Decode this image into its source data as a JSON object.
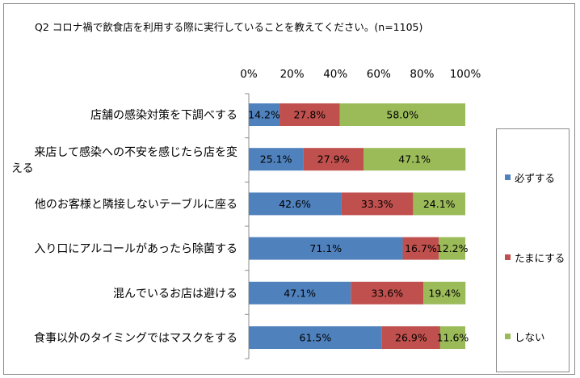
{
  "title": "Q2 コロナ禍で飲食店を利用する際に実行していることを教えてください。(n=1105)",
  "chart_data": {
    "type": "bar",
    "orientation": "horizontal",
    "stacked": "percent",
    "xlim": [
      0,
      100
    ],
    "ticks": [
      "0%",
      "20%",
      "40%",
      "60%",
      "80%",
      "100%"
    ],
    "tick_position": "top",
    "grid": false,
    "legend_position": "right",
    "categories": [
      [
        "店舗の感染対策を下調べする"
      ],
      [
        "来店して感染への不安を感じたら店を変",
        "える"
      ],
      [
        "他のお客様と隣接しないテーブルに座る"
      ],
      [
        "入り口にアルコールがあったら除菌する"
      ],
      [
        "混んでいるお店は避ける"
      ],
      [
        "食事以外のタイミングではマスクをする"
      ]
    ],
    "series": [
      {
        "name": "必ずする",
        "color": "#4f81bd",
        "values": [
          14.2,
          25.1,
          42.6,
          71.1,
          47.1,
          61.5
        ]
      },
      {
        "name": "たまにする",
        "color": "#c0504d",
        "values": [
          27.8,
          27.9,
          33.3,
          16.7,
          33.6,
          26.9
        ]
      },
      {
        "name": "しない",
        "color": "#9bbb59",
        "values": [
          58.0,
          47.1,
          24.1,
          12.2,
          19.4,
          11.6
        ]
      }
    ]
  }
}
